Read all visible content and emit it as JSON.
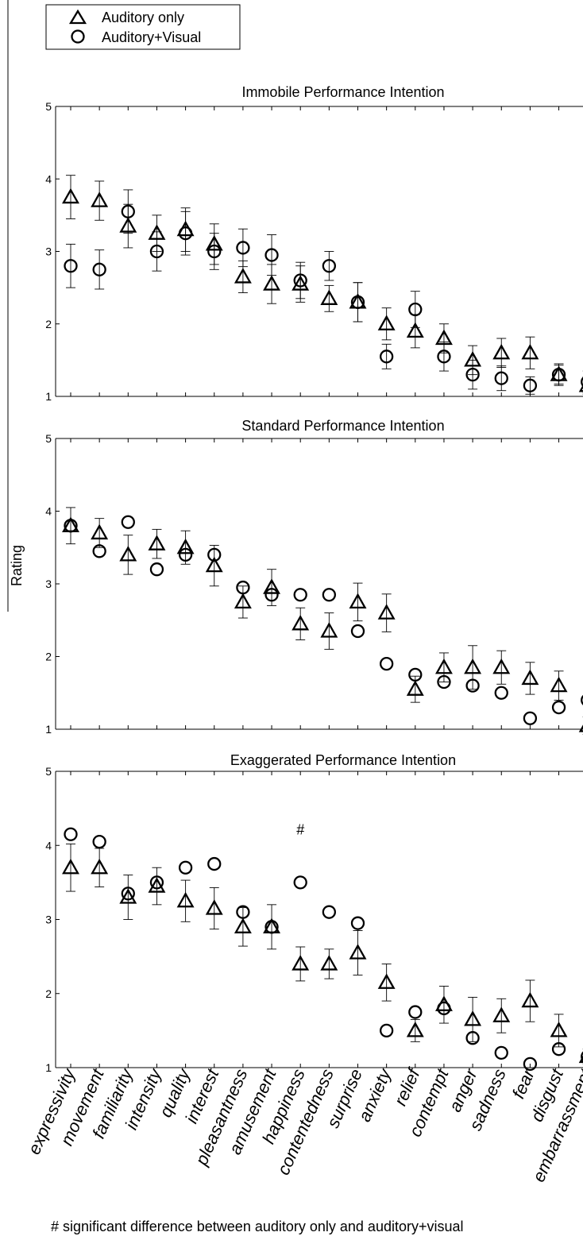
{
  "legend": {
    "items": [
      {
        "label": "Auditory only",
        "marker": "triangle"
      },
      {
        "label": "Auditory+Visual",
        "marker": "circle"
      }
    ]
  },
  "ylabel": "Rating",
  "footnote": "# significant difference between auditory only and auditory+visual",
  "chart_data": {
    "type": "scatter",
    "categories": [
      "expressivity",
      "movement",
      "familiarity",
      "intensity",
      "quality",
      "interest",
      "pleasantness",
      "amusement",
      "happiness",
      "contentedness",
      "surprise",
      "anxiety",
      "relief",
      "contempt",
      "anger",
      "sadness",
      "fear",
      "disgust",
      "embarrassment"
    ],
    "ylim": [
      1,
      5
    ],
    "yticks": [
      1,
      2,
      3,
      4,
      5
    ],
    "error_bars": true,
    "panels": [
      {
        "title": "Immobile Performance Intention",
        "series": [
          {
            "name": "Auditory only",
            "values": [
              3.75,
              3.7,
              3.35,
              3.25,
              3.3,
              3.1,
              2.65,
              2.55,
              2.55,
              2.35,
              2.3,
              2.0,
              1.9,
              1.8,
              1.5,
              1.6,
              1.6,
              1.3,
              1.15
            ],
            "err": [
              0.3,
              0.27,
              0.3,
              0.25,
              0.3,
              0.28,
              0.22,
              0.27,
              0.25,
              0.18,
              0.27,
              0.22,
              0.23,
              0.2,
              0.2,
              0.2,
              0.22,
              0.15,
              0.12
            ]
          },
          {
            "name": "Auditory+Visual",
            "values": [
              2.8,
              2.75,
              3.55,
              3.0,
              3.25,
              3.0,
              3.05,
              2.95,
              2.6,
              2.8,
              2.3,
              1.55,
              2.2,
              1.55,
              1.3,
              1.25,
              1.15,
              1.3,
              1.2
            ],
            "err": [
              0.3,
              0.27,
              0.3,
              0.27,
              0.3,
              0.25,
              0.26,
              0.28,
              0.25,
              0.2,
              0.27,
              0.17,
              0.25,
              0.2,
              0.2,
              0.17,
              0.12,
              0.13,
              0.15
            ]
          }
        ]
      },
      {
        "title": "Standard Performance Intention",
        "series": [
          {
            "name": "Auditory only",
            "values": [
              3.8,
              3.7,
              3.4,
              3.55,
              3.5,
              3.25,
              2.75,
              2.95,
              2.45,
              2.35,
              2.75,
              2.6,
              1.55,
              1.85,
              1.85,
              1.85,
              1.7,
              1.6,
              1.05
            ],
            "err": [
              0.25,
              0.2,
              0.27,
              0.2,
              0.23,
              0.28,
              0.22,
              0.25,
              0.22,
              0.25,
              0.26,
              0.26,
              0.18,
              0.2,
              0.3,
              0.23,
              0.22,
              0.2,
              0.12
            ]
          },
          {
            "name": "Auditory+Visual",
            "values": [
              3.8,
              3.45,
              3.85,
              3.2,
              3.4,
              3.4,
              2.95,
              2.85,
              2.85,
              2.85,
              2.35,
              1.9,
              1.75,
              1.65,
              1.6,
              1.5,
              1.15,
              1.3,
              1.4
            ]
          }
        ]
      },
      {
        "title": "Exaggerated Performance Intention",
        "annotations": [
          {
            "label": "#",
            "category": "happiness",
            "y": 4.15
          }
        ],
        "series": [
          {
            "name": "Auditory only",
            "values": [
              3.7,
              3.7,
              3.3,
              3.45,
              3.25,
              3.15,
              2.9,
              2.9,
              2.4,
              2.4,
              2.55,
              2.15,
              1.5,
              1.85,
              1.65,
              1.7,
              1.9,
              1.5,
              1.15
            ],
            "err": [
              0.32,
              0.26,
              0.3,
              0.25,
              0.28,
              0.28,
              0.26,
              0.3,
              0.23,
              0.2,
              0.3,
              0.25,
              0.15,
              0.25,
              0.3,
              0.23,
              0.28,
              0.22,
              0.1
            ]
          },
          {
            "name": "Auditory+Visual",
            "values": [
              4.15,
              4.05,
              3.35,
              3.5,
              3.7,
              3.75,
              3.1,
              2.9,
              3.5,
              3.1,
              2.95,
              1.5,
              1.75,
              1.8,
              1.4,
              1.2,
              1.05,
              1.25,
              1.15
            ]
          }
        ]
      }
    ]
  }
}
